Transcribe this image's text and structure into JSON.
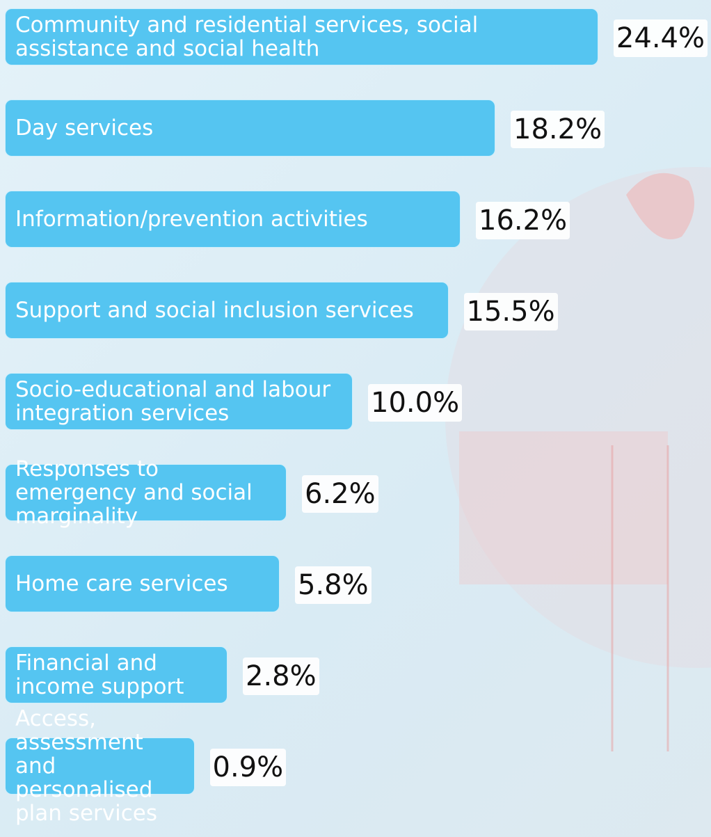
{
  "chart_data": {
    "type": "bar",
    "orientation": "horizontal",
    "color": "#55c5f1",
    "categories": [
      "Community and residential services, social assistance and social health",
      "Day services",
      "Information/prevention activities",
      "Support and social inclusion services",
      "Socio-educational and labour integration services",
      "Responses to emergency and social marginality",
      "Home care services",
      "Financial and income support",
      "Access, assessment and personalised plan services"
    ],
    "values": [
      24.4,
      18.2,
      16.2,
      15.5,
      10.0,
      6.2,
      5.8,
      2.8,
      0.9
    ],
    "value_labels": [
      "24.4%",
      "18.2%",
      "16.2%",
      "15.5%",
      "10.0%",
      "6.2%",
      "5.8%",
      "2.8%",
      "0.9%"
    ]
  }
}
